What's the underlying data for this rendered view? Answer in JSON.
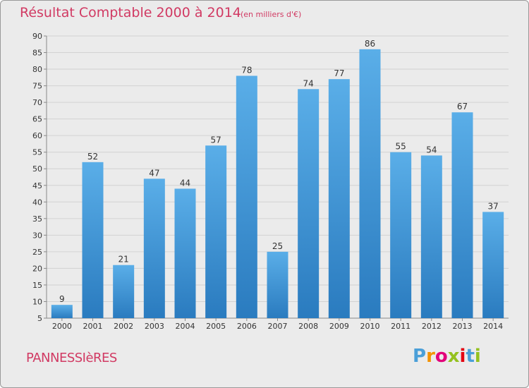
{
  "chart_data": {
    "type": "bar",
    "title": "Résultat Comptable 2000 à 2014",
    "subtitle": "(en milliers d'€)",
    "categories": [
      "2000",
      "2001",
      "2002",
      "2003",
      "2004",
      "2005",
      "2006",
      "2007",
      "2008",
      "2009",
      "2010",
      "2011",
      "2012",
      "2013",
      "2014"
    ],
    "values": [
      9,
      52,
      21,
      47,
      44,
      57,
      78,
      25,
      74,
      77,
      86,
      55,
      54,
      67,
      37
    ],
    "ylim": [
      5,
      90
    ],
    "yticks": [
      5,
      10,
      15,
      20,
      25,
      30,
      35,
      40,
      45,
      50,
      55,
      60,
      65,
      70,
      75,
      80,
      85,
      90
    ],
    "xlabel": "",
    "ylabel": "",
    "grid": true,
    "bar_color_top": "#5aaee8",
    "bar_color_bottom": "#2a7bbf"
  },
  "footer": {
    "commune": "PANNESSIèRES",
    "logo_letters": [
      "P",
      "r",
      "o",
      "x",
      "i",
      "t",
      "i"
    ],
    "logo_colors": [
      "#4a9fd8",
      "#f39200",
      "#e2007a",
      "#94c11f",
      "#e30613",
      "#4a9fd8",
      "#94c11f"
    ]
  },
  "colors": {
    "title": "#d13a63",
    "background": "#ebebeb"
  }
}
